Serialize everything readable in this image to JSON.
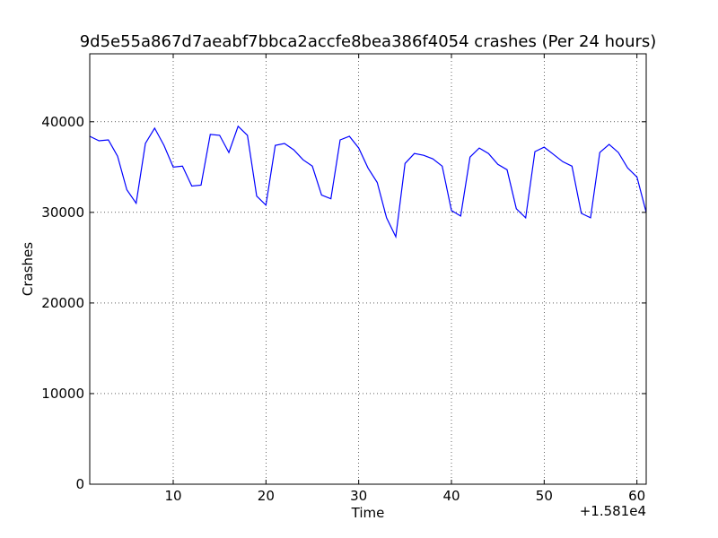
{
  "chart_data": {
    "type": "line",
    "title": "9d5e55a867d7aeabf7bbca2accfe8bea386f4054 crashes (Per 24 hours)",
    "xlabel": "Time",
    "ylabel": "Crashes",
    "x_offset_label": "+1.581e4",
    "xlim": [
      1,
      61
    ],
    "ylim": [
      0,
      47500
    ],
    "grid": true,
    "x_ticks": [
      10,
      20,
      30,
      40,
      50,
      60
    ],
    "y_ticks": [
      0,
      10000,
      20000,
      30000,
      40000
    ],
    "series": [
      {
        "color": "#0000ff",
        "x": [
          1,
          2,
          3,
          4,
          5,
          6,
          7,
          8,
          9,
          10,
          11,
          12,
          13,
          14,
          15,
          16,
          17,
          18,
          19,
          20,
          21,
          22,
          23,
          24,
          25,
          26,
          27,
          28,
          29,
          30,
          31,
          32,
          33,
          34,
          35,
          36,
          37,
          38,
          39,
          40,
          41,
          42,
          43,
          44,
          45,
          46,
          47,
          48,
          49,
          50,
          51,
          52,
          53,
          54,
          55,
          56,
          57,
          58,
          59,
          60,
          61
        ],
        "values": [
          38400,
          37900,
          38000,
          36200,
          32500,
          31000,
          37600,
          39300,
          37400,
          35000,
          35100,
          32900,
          33000,
          38600,
          38500,
          36600,
          39500,
          38500,
          31800,
          30800,
          37400,
          37600,
          36900,
          35800,
          35100,
          31900,
          31500,
          38000,
          38400,
          37100,
          34900,
          33300,
          29400,
          27300,
          35400,
          36500,
          36300,
          35900,
          35100,
          30200,
          29600,
          36100,
          37100,
          36500,
          35300,
          34700,
          30400,
          29400,
          36700,
          37200,
          36400,
          35600,
          35100,
          29900,
          29400,
          36600,
          37500,
          36600,
          34900,
          33900,
          30000
        ]
      }
    ]
  }
}
